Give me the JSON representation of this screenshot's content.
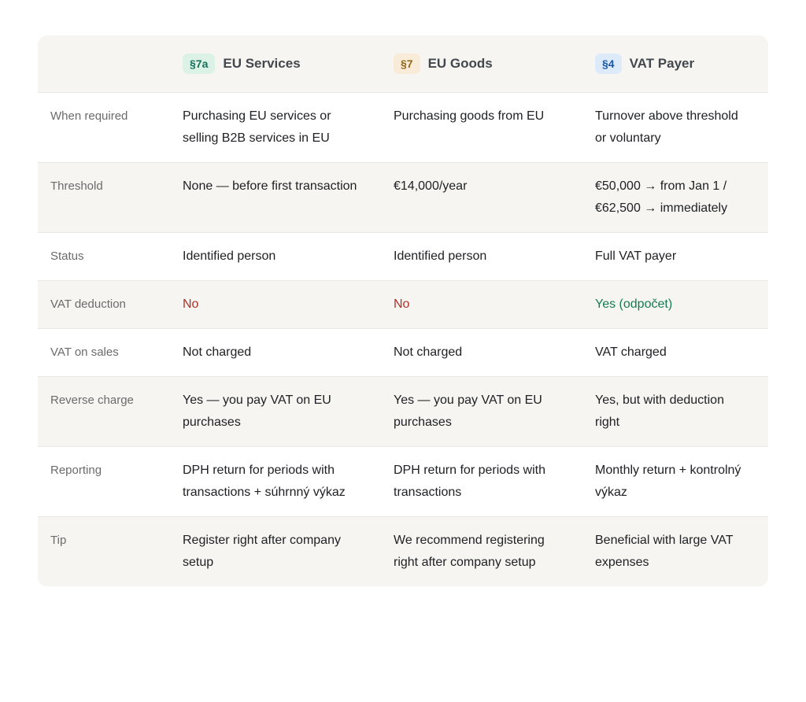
{
  "table": {
    "columns": [
      {
        "badge": "§7a",
        "title": "EU Services",
        "badge_bg": "#ddf2e7",
        "badge_color": "#17715a"
      },
      {
        "badge": "§7",
        "title": "EU Goods",
        "badge_bg": "#f8ecd8",
        "badge_color": "#8f681c"
      },
      {
        "badge": "§4",
        "title": "VAT Payer",
        "badge_bg": "#ddeafa",
        "badge_color": "#1a57a8"
      }
    ],
    "rows": [
      {
        "label": "When required",
        "cells": [
          "Purchasing EU services or selling B2B services in EU",
          "Purchasing goods from EU",
          "Turnover above threshold or voluntary"
        ]
      },
      {
        "label": "Threshold",
        "cells": [
          "None — before first transaction",
          "€14,000/year",
          "€50,000 → from Jan 1 / €62,500 → immediately"
        ]
      },
      {
        "label": "Status",
        "cells": [
          "Identified person",
          "Identified person",
          "Full VAT payer"
        ]
      },
      {
        "label": "VAT deduction",
        "cells": [
          "No",
          "No",
          "Yes (odpočet)"
        ],
        "cell_colors": [
          "#b03226",
          "#b03226",
          "#177a56"
        ]
      },
      {
        "label": "VAT on sales",
        "cells": [
          "Not charged",
          "Not charged",
          "VAT charged"
        ]
      },
      {
        "label": "Reverse charge",
        "cells": [
          "Yes — you pay VAT on EU purchases",
          "Yes — you pay VAT on EU purchases",
          "Yes, but with deduction right"
        ]
      },
      {
        "label": "Reporting",
        "cells": [
          "DPH return for periods with transactions + súhrnný výkaz",
          "DPH return for periods with transactions",
          "Monthly return + kontrolný výkaz"
        ]
      },
      {
        "label": "Tip",
        "cells": [
          "Register right after company setup",
          "We recommend registering right after company setup",
          "Beneficial with large VAT expenses"
        ]
      }
    ],
    "colors": {
      "row_shaded_bg": "#f6f5f2",
      "divider": "#eae8e4",
      "label_text": "#6b6b6b",
      "body_text": "#202124",
      "header_title_text": "#43484d",
      "negative_text": "#b03226",
      "positive_text": "#177a56"
    }
  }
}
